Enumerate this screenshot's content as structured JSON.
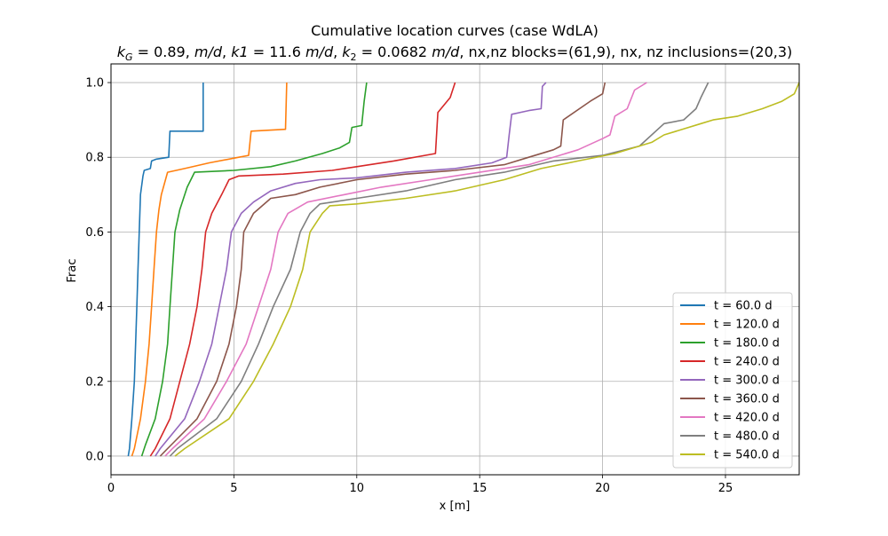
{
  "chart_data": {
    "type": "line",
    "title": "Cumulative location curves (case WdLA)",
    "subtitle_parts": {
      "kG_sym": "k",
      "kG_sub": "G",
      "kG_val": " = 0.89, ",
      "kG_unit": "m/d",
      "sep1": ", ",
      "k1_sym": "k1",
      "k1_val": " = 11.6 ",
      "k1_unit": "m/d",
      "sep2": ", ",
      "k2_sym": "k",
      "k2_sub": "2",
      "k2_val": " = 0.0682 ",
      "k2_unit": "m/d",
      "tail": ", nx,nz blocks=(61,9), nx, nz inclusions=(20,3)"
    },
    "xlabel": "x [m]",
    "ylabel": "Frac",
    "xlim": [
      0,
      28
    ],
    "ylim": [
      -0.05,
      1.05
    ],
    "xticks": [
      0,
      5,
      10,
      15,
      20,
      25
    ],
    "yticks": [
      0.0,
      0.2,
      0.4,
      0.6,
      0.8,
      1.0
    ],
    "xtick_labels": [
      "0",
      "5",
      "10",
      "15",
      "20",
      "25"
    ],
    "ytick_labels": [
      "0.0",
      "0.2",
      "0.4",
      "0.6",
      "0.8",
      "1.0"
    ],
    "grid": true,
    "legend_position": "lower-right",
    "series": [
      {
        "name": "t = 60.0 d",
        "color": "#1f77b4",
        "points": [
          [
            0.7,
            0.0
          ],
          [
            0.75,
            0.02
          ],
          [
            0.85,
            0.1
          ],
          [
            0.95,
            0.2
          ],
          [
            1.0,
            0.3
          ],
          [
            1.05,
            0.4
          ],
          [
            1.1,
            0.5
          ],
          [
            1.15,
            0.6
          ],
          [
            1.2,
            0.7
          ],
          [
            1.3,
            0.75
          ],
          [
            1.35,
            0.765
          ],
          [
            1.6,
            0.77
          ],
          [
            1.65,
            0.79
          ],
          [
            1.85,
            0.795
          ],
          [
            2.35,
            0.8
          ],
          [
            2.4,
            0.87
          ],
          [
            3.75,
            0.87
          ],
          [
            3.75,
            1.0
          ]
        ]
      },
      {
        "name": "t = 120.0 d",
        "color": "#ff7f0e",
        "points": [
          [
            0.85,
            0.0
          ],
          [
            0.95,
            0.02
          ],
          [
            1.2,
            0.1
          ],
          [
            1.4,
            0.2
          ],
          [
            1.55,
            0.3
          ],
          [
            1.65,
            0.4
          ],
          [
            1.75,
            0.5
          ],
          [
            1.85,
            0.6
          ],
          [
            1.95,
            0.66
          ],
          [
            2.05,
            0.7
          ],
          [
            2.3,
            0.76
          ],
          [
            3.0,
            0.77
          ],
          [
            4.0,
            0.785
          ],
          [
            5.2,
            0.8
          ],
          [
            5.6,
            0.805
          ],
          [
            5.7,
            0.87
          ],
          [
            7.1,
            0.875
          ],
          [
            7.15,
            1.0
          ]
        ]
      },
      {
        "name": "t = 180.0 d",
        "color": "#2ca02c",
        "points": [
          [
            1.25,
            0.0
          ],
          [
            1.4,
            0.03
          ],
          [
            1.8,
            0.1
          ],
          [
            2.1,
            0.2
          ],
          [
            2.3,
            0.3
          ],
          [
            2.4,
            0.4
          ],
          [
            2.5,
            0.5
          ],
          [
            2.6,
            0.6
          ],
          [
            2.8,
            0.66
          ],
          [
            3.1,
            0.72
          ],
          [
            3.4,
            0.76
          ],
          [
            5.0,
            0.765
          ],
          [
            6.5,
            0.775
          ],
          [
            7.5,
            0.79
          ],
          [
            8.6,
            0.81
          ],
          [
            9.3,
            0.825
          ],
          [
            9.7,
            0.84
          ],
          [
            9.8,
            0.88
          ],
          [
            10.2,
            0.885
          ],
          [
            10.3,
            0.95
          ],
          [
            10.4,
            1.0
          ]
        ]
      },
      {
        "name": "t = 240.0 d",
        "color": "#d62728",
        "points": [
          [
            1.6,
            0.0
          ],
          [
            1.8,
            0.02
          ],
          [
            2.4,
            0.1
          ],
          [
            2.8,
            0.2
          ],
          [
            3.2,
            0.3
          ],
          [
            3.5,
            0.4
          ],
          [
            3.7,
            0.5
          ],
          [
            3.85,
            0.6
          ],
          [
            4.1,
            0.65
          ],
          [
            4.5,
            0.7
          ],
          [
            4.8,
            0.74
          ],
          [
            5.2,
            0.75
          ],
          [
            7.0,
            0.755
          ],
          [
            9.0,
            0.765
          ],
          [
            10.0,
            0.775
          ],
          [
            11.5,
            0.79
          ],
          [
            13.2,
            0.81
          ],
          [
            13.3,
            0.92
          ],
          [
            13.8,
            0.96
          ],
          [
            14.0,
            1.0
          ]
        ]
      },
      {
        "name": "t = 300.0 d",
        "color": "#9467bd",
        "points": [
          [
            1.8,
            0.0
          ],
          [
            2.0,
            0.02
          ],
          [
            3.0,
            0.1
          ],
          [
            3.6,
            0.2
          ],
          [
            4.1,
            0.3
          ],
          [
            4.4,
            0.4
          ],
          [
            4.7,
            0.5
          ],
          [
            4.9,
            0.6
          ],
          [
            5.3,
            0.65
          ],
          [
            5.8,
            0.68
          ],
          [
            6.5,
            0.71
          ],
          [
            7.5,
            0.73
          ],
          [
            8.5,
            0.74
          ],
          [
            10.0,
            0.745
          ],
          [
            12.0,
            0.76
          ],
          [
            14.0,
            0.77
          ],
          [
            15.5,
            0.785
          ],
          [
            16.1,
            0.8
          ],
          [
            16.2,
            0.86
          ],
          [
            16.3,
            0.915
          ],
          [
            17.0,
            0.925
          ],
          [
            17.5,
            0.93
          ],
          [
            17.55,
            0.99
          ],
          [
            17.7,
            1.0
          ]
        ]
      },
      {
        "name": "t = 360.0 d",
        "color": "#8c564b",
        "points": [
          [
            2.0,
            0.0
          ],
          [
            2.3,
            0.02
          ],
          [
            3.5,
            0.1
          ],
          [
            4.3,
            0.2
          ],
          [
            4.8,
            0.3
          ],
          [
            5.1,
            0.4
          ],
          [
            5.3,
            0.5
          ],
          [
            5.4,
            0.6
          ],
          [
            5.8,
            0.65
          ],
          [
            6.5,
            0.69
          ],
          [
            7.5,
            0.7
          ],
          [
            8.5,
            0.72
          ],
          [
            10.0,
            0.74
          ],
          [
            12.0,
            0.755
          ],
          [
            14.0,
            0.765
          ],
          [
            16.0,
            0.78
          ],
          [
            17.0,
            0.8
          ],
          [
            18.0,
            0.82
          ],
          [
            18.3,
            0.83
          ],
          [
            18.4,
            0.9
          ],
          [
            19.5,
            0.95
          ],
          [
            20.0,
            0.97
          ],
          [
            20.1,
            1.0
          ]
        ]
      },
      {
        "name": "t = 420.0 d",
        "color": "#e377c2",
        "points": [
          [
            2.2,
            0.0
          ],
          [
            2.5,
            0.02
          ],
          [
            3.8,
            0.1
          ],
          [
            4.7,
            0.2
          ],
          [
            5.5,
            0.3
          ],
          [
            6.0,
            0.4
          ],
          [
            6.5,
            0.5
          ],
          [
            6.8,
            0.6
          ],
          [
            7.2,
            0.65
          ],
          [
            8.0,
            0.68
          ],
          [
            9.5,
            0.7
          ],
          [
            11.0,
            0.72
          ],
          [
            13.0,
            0.74
          ],
          [
            15.0,
            0.76
          ],
          [
            17.0,
            0.78
          ],
          [
            19.0,
            0.82
          ],
          [
            20.0,
            0.85
          ],
          [
            20.3,
            0.86
          ],
          [
            20.5,
            0.91
          ],
          [
            21.0,
            0.93
          ],
          [
            21.3,
            0.98
          ],
          [
            21.8,
            1.0
          ]
        ]
      },
      {
        "name": "t = 480.0 d",
        "color": "#7f7f7f",
        "points": [
          [
            2.4,
            0.0
          ],
          [
            2.7,
            0.02
          ],
          [
            4.3,
            0.1
          ],
          [
            5.3,
            0.2
          ],
          [
            6.0,
            0.3
          ],
          [
            6.6,
            0.4
          ],
          [
            7.3,
            0.5
          ],
          [
            7.7,
            0.6
          ],
          [
            8.1,
            0.65
          ],
          [
            8.5,
            0.675
          ],
          [
            10.0,
            0.69
          ],
          [
            12.0,
            0.71
          ],
          [
            14.0,
            0.74
          ],
          [
            16.0,
            0.76
          ],
          [
            18.0,
            0.79
          ],
          [
            20.0,
            0.805
          ],
          [
            21.5,
            0.83
          ],
          [
            22.5,
            0.89
          ],
          [
            23.3,
            0.9
          ],
          [
            23.8,
            0.93
          ],
          [
            24.0,
            0.96
          ],
          [
            24.3,
            1.0
          ]
        ]
      },
      {
        "name": "t = 540.0 d",
        "color": "#bcbd22",
        "points": [
          [
            2.6,
            0.0
          ],
          [
            3.0,
            0.02
          ],
          [
            4.8,
            0.1
          ],
          [
            5.8,
            0.2
          ],
          [
            6.6,
            0.3
          ],
          [
            7.3,
            0.4
          ],
          [
            7.8,
            0.5
          ],
          [
            8.1,
            0.6
          ],
          [
            8.6,
            0.65
          ],
          [
            8.9,
            0.67
          ],
          [
            10.0,
            0.675
          ],
          [
            12.0,
            0.69
          ],
          [
            14.0,
            0.71
          ],
          [
            16.0,
            0.74
          ],
          [
            17.5,
            0.77
          ],
          [
            19.0,
            0.79
          ],
          [
            20.5,
            0.81
          ],
          [
            22.0,
            0.84
          ],
          [
            22.5,
            0.86
          ],
          [
            23.0,
            0.87
          ],
          [
            24.0,
            0.89
          ],
          [
            24.5,
            0.9
          ],
          [
            25.5,
            0.91
          ],
          [
            26.5,
            0.93
          ],
          [
            27.3,
            0.95
          ],
          [
            27.8,
            0.97
          ],
          [
            28.0,
            1.0
          ]
        ]
      }
    ]
  }
}
